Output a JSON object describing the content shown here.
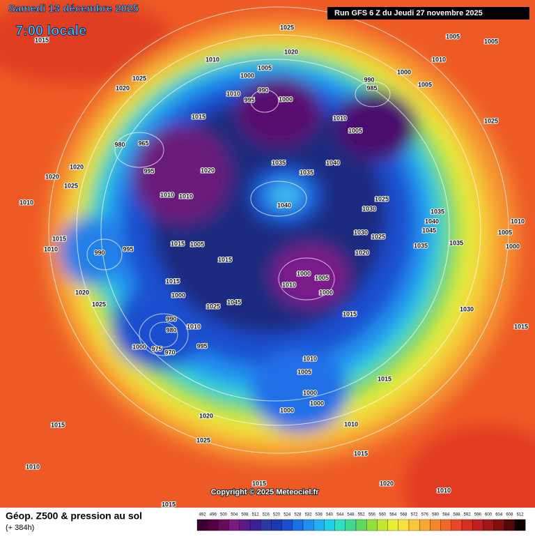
{
  "header": {
    "date": "Samedi 13 décembre 2025",
    "time": "7:00 locale",
    "run": "Run GFS 6 Z du Jeudi 27 novembre 2025"
  },
  "map": {
    "copyright": "Copyright © 2025 Meteociel.fr",
    "pressure_labels": [
      1015,
      1025,
      1020,
      1005,
      1005,
      1010,
      1025,
      1020,
      1010,
      1005,
      1000,
      990,
      995,
      1000,
      1010,
      990,
      985,
      1000,
      1005,
      1015,
      1010,
      1005,
      1025,
      980,
      965,
      1035,
      1035,
      1040,
      1020,
      995,
      1020,
      1020,
      1025,
      1010,
      1010,
      1040,
      1030,
      1025,
      1035,
      1040,
      1045,
      1035,
      1035,
      1010,
      1015,
      1010,
      990,
      995,
      1015,
      1005,
      1030,
      1025,
      1020,
      1015,
      1000,
      1005,
      1010,
      1000,
      1015,
      1000,
      1045,
      1025,
      1020,
      1025,
      1015,
      1030,
      990,
      980,
      1010,
      995,
      1000,
      975,
      970,
      1010,
      1005,
      1015,
      1000,
      1000,
      1000,
      1020,
      1015,
      1010,
      1025,
      1015,
      1010,
      1015,
      1020,
      1010,
      1015,
      1015,
      1010,
      1000,
      1005
    ]
  },
  "legend": {
    "title": "Géop. Z500 & pression au sol",
    "lead": "(+ 384h)",
    "scale": {
      "ticks": [
        492,
        496,
        500,
        504,
        508,
        512,
        516,
        520,
        524,
        528,
        532,
        536,
        540,
        544,
        548,
        552,
        556,
        560,
        564,
        568,
        572,
        576,
        580,
        584,
        588,
        592,
        596,
        600,
        604,
        608,
        612
      ],
      "colors": [
        "#3a0030",
        "#550040",
        "#6a0a5a",
        "#7a1a7a",
        "#5a1a8a",
        "#3a2090",
        "#2a3aa0",
        "#1a3ab0",
        "#1a50d0",
        "#1a70e8",
        "#2090f0",
        "#20b0f0",
        "#20d0e8",
        "#30e0c0",
        "#40d890",
        "#60d860",
        "#90e040",
        "#c0e830",
        "#e8f030",
        "#f8e040",
        "#f8c838",
        "#f8a830",
        "#f08828",
        "#f06828",
        "#e84828",
        "#d83020",
        "#c02020",
        "#a01818",
        "#801010",
        "#500808",
        "#100000"
      ]
    }
  }
}
